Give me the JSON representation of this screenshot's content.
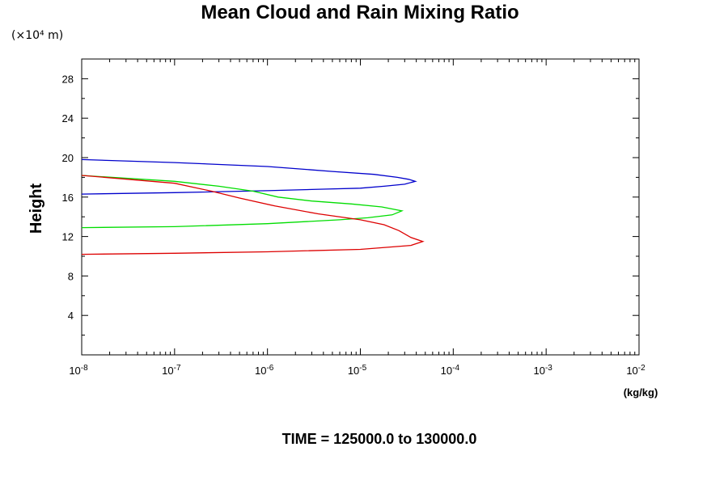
{
  "chart_data": {
    "type": "line",
    "title": "Mean Cloud and Rain Mixing Ratio",
    "y_unit_label": "(×10⁴ m)",
    "ylabel": "Height",
    "xunit": "(kg/kg)",
    "footer": "TIME = 125000.0 to 130000.0",
    "xscale": "log",
    "xlim": [
      1e-08,
      0.01
    ],
    "ylim": [
      0,
      30
    ],
    "x_ticks": [
      {
        "value": 1e-08,
        "base": "10",
        "exp": "-8"
      },
      {
        "value": 1e-07,
        "base": "10",
        "exp": "-7"
      },
      {
        "value": 1e-06,
        "base": "10",
        "exp": "-6"
      },
      {
        "value": 1e-05,
        "base": "10",
        "exp": "-5"
      },
      {
        "value": 0.0001,
        "base": "10",
        "exp": "-4"
      },
      {
        "value": 0.001,
        "base": "10",
        "exp": "-3"
      },
      {
        "value": 0.01,
        "base": "10",
        "exp": "-2"
      }
    ],
    "y_ticks": [
      "4",
      "8",
      "12",
      "16",
      "20",
      "24",
      "28"
    ],
    "grid": false,
    "series": [
      {
        "color": "#0000cc",
        "x": [
          1e-08,
          1e-07,
          1e-06,
          5e-06,
          1.4e-05,
          2.5e-05,
          3.3e-05,
          3.9e-05,
          3e-05,
          1.8e-05,
          1e-05,
          4e-06,
          1e-06,
          1e-07,
          1e-08
        ],
        "y": [
          19.8,
          19.5,
          19.1,
          18.6,
          18.3,
          18.0,
          17.8,
          17.6,
          17.3,
          17.1,
          16.9,
          16.8,
          16.65,
          16.45,
          16.3
        ]
      },
      {
        "color": "#00dd00",
        "x": [
          1e-08,
          1e-07,
          3e-07,
          7e-07,
          1.3e-06,
          3e-06,
          8e-06,
          1.7e-05,
          2.8e-05,
          2.2e-05,
          1.2e-05,
          6e-06,
          1e-06,
          1e-07,
          1e-08
        ],
        "y": [
          18.2,
          17.6,
          17.1,
          16.6,
          16.0,
          15.6,
          15.3,
          15.0,
          14.6,
          14.2,
          13.9,
          13.7,
          13.3,
          13.0,
          12.9
        ]
      },
      {
        "color": "#dd0000",
        "x": [
          1e-08,
          1e-07,
          2.5e-07,
          5e-07,
          1.2e-06,
          3.5e-06,
          1e-05,
          1.8e-05,
          2.6e-05,
          3.5e-05,
          4.7e-05,
          3.5e-05,
          1e-05,
          1e-06,
          1e-07,
          1e-08
        ],
        "y": [
          18.2,
          17.4,
          16.6,
          15.9,
          15.1,
          14.3,
          13.7,
          13.2,
          12.6,
          11.9,
          11.5,
          11.1,
          10.7,
          10.45,
          10.3,
          10.2
        ]
      }
    ]
  }
}
